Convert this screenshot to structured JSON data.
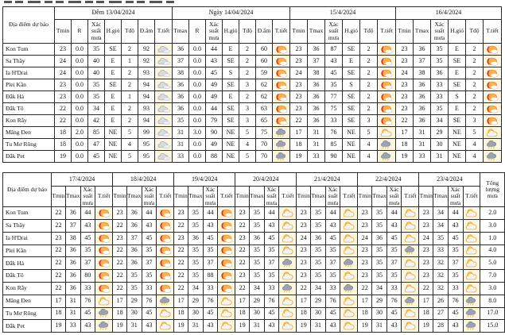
{
  "colors": {
    "icon_cell_bg": "#FBF7DE",
    "table_border": "#2B2B2B",
    "sun_orange": "#FFB347",
    "sun_red": "#D93025",
    "sun_yellow": "#FFD34D",
    "cloud_gray": "#D8DBDF",
    "rain_cloud_gray": "#9CA3AF",
    "rain_drop_yellow": "#E8B32A"
  },
  "icon_legend": {
    "cloud": "gray-cloud",
    "hotsun": "hot-sun-with-small-cloud",
    "partly": "sun-behind-cloud",
    "rain": "rain-shower-cloud"
  },
  "table1": {
    "location_header": "Địa điểm dự báo",
    "groups": [
      {
        "title": "Đêm 13/04/2024",
        "cols": [
          "Tmin",
          "R",
          "Xác suất mưa",
          "H.gió",
          "Tđộ",
          "Đ.ẩm",
          "T.tiết"
        ]
      },
      {
        "title": "Ngày 14/04/2024",
        "cols": [
          "Tmax",
          "R",
          "Xác suất mưa",
          "H.gió",
          "Tđộ",
          "Đ.ẩm",
          "T.tiết"
        ]
      },
      {
        "title": "15/4/2024",
        "cols": [
          "Tmin",
          "Tmax",
          "Xác suất mưa",
          "H.gió",
          "Tđộ",
          "T.tiết"
        ]
      },
      {
        "title": "16/4/2024",
        "cols": [
          "Tmin",
          "Tmax",
          "Xác suất mưa",
          "H.gió",
          "Tđộ",
          "T.tiết"
        ]
      }
    ],
    "rows": [
      {
        "name": "Kon Tum",
        "cells": [
          "23",
          "0.0",
          "35",
          "SE",
          "2",
          "92",
          "icon:cloud",
          "36",
          "0.0",
          "44",
          "E",
          "2",
          "60",
          "icon:hotsun",
          "23",
          "36",
          "87",
          "SE",
          "2",
          "icon:hotsun",
          "23",
          "36",
          "35",
          "E",
          "2",
          "icon:hotsun"
        ]
      },
      {
        "name": "Sa Thầy",
        "cells": [
          "24",
          "0.0",
          "40",
          "E",
          "1",
          "92",
          "icon:cloud",
          "37",
          "0.0",
          "43",
          "SE",
          "2",
          "60",
          "icon:hotsun",
          "23",
          "37",
          "43",
          "E",
          "2",
          "icon:hotsun",
          "23",
          "37",
          "35",
          "SE",
          "2",
          "icon:hotsun"
        ]
      },
      {
        "name": "Ia H'Drai",
        "cells": [
          "24",
          "0.0",
          "40",
          "E",
          "2",
          "93",
          "icon:cloud",
          "38",
          "0.0",
          "45",
          "S",
          "2",
          "59",
          "icon:hotsun",
          "24",
          "38",
          "45",
          "SE",
          "2",
          "icon:hotsun",
          "24",
          "38",
          "36",
          "E",
          "2",
          "icon:hotsun"
        ]
      },
      {
        "name": "Plei Kần",
        "cells": [
          "23",
          "0.0",
          "35",
          "SE",
          "2",
          "94",
          "icon:cloud",
          "36",
          "0.0",
          "49",
          "SE",
          "3",
          "62",
          "icon:hotsun",
          "23",
          "36",
          "35",
          "S",
          "2",
          "icon:hotsun",
          "23",
          "36",
          "33",
          "SE",
          "2",
          "icon:hotsun"
        ]
      },
      {
        "name": "Đắk Hà",
        "cells": [
          "23",
          "0.0",
          "35",
          "E",
          "1",
          "94",
          "icon:cloud",
          "36",
          "0.0",
          "49",
          "E",
          "2",
          "62",
          "icon:hotsun",
          "23",
          "36",
          "77",
          "SE",
          "2",
          "icon:hotsun",
          "23",
          "36",
          "33",
          "S",
          "2",
          "icon:hotsun"
        ]
      },
      {
        "name": "Đắk Tô",
        "cells": [
          "22",
          "0.0",
          "34",
          "E",
          "2",
          "93",
          "icon:cloud",
          "36",
          "0.0",
          "44",
          "SE",
          "3",
          "63",
          "icon:hotsun",
          "23",
          "36",
          "75",
          "SE",
          "2",
          "icon:hotsun",
          "23",
          "36",
          "35",
          "E",
          "2",
          "icon:hotsun"
        ]
      },
      {
        "name": "Kon Rẫy",
        "cells": [
          "22",
          "0.0",
          "42",
          "E",
          "2",
          "94",
          "icon:cloud",
          "35",
          "0.0",
          "79",
          "SE",
          "3",
          "65",
          "icon:hotsun",
          "22",
          "36",
          "33",
          "SE",
          "3",
          "icon:hotsun",
          "22",
          "36",
          "34",
          "SE",
          "3",
          "icon:hotsun"
        ]
      },
      {
        "name": "Măng Đen",
        "cells": [
          "18",
          "2.0",
          "85",
          "NE",
          "5",
          "99",
          "icon:cloud",
          "31",
          "3.0",
          "90",
          "NE",
          "5",
          "75",
          "icon:rain",
          "17",
          "31",
          "76",
          "NE",
          "5",
          "icon:partly",
          "17",
          "31",
          "29",
          "NE",
          "5",
          "icon:partly"
        ]
      },
      {
        "name": "Tu Mơ Rông",
        "cells": [
          "18",
          "0.0",
          "47",
          "NE",
          "4",
          "95",
          "icon:cloud",
          "31",
          "0.0",
          "49",
          "NE",
          "4",
          "70",
          "icon:rain",
          "18",
          "31",
          "85",
          "NE",
          "4",
          "icon:rain",
          "18",
          "31",
          "30",
          "NE",
          "4",
          "icon:rain"
        ]
      },
      {
        "name": "Đắk Pet",
        "cells": [
          "19",
          "0.0",
          "45",
          "NE",
          "5",
          "95",
          "icon:cloud",
          "33",
          "0.0",
          "88",
          "NE",
          "5",
          "70",
          "icon:rain",
          "19",
          "33",
          "90",
          "NE",
          "4",
          "icon:rain",
          "19",
          "33",
          "31",
          "NE",
          "4",
          "icon:rain"
        ]
      }
    ]
  },
  "table2": {
    "location_header": "Địa điểm dự báo",
    "total_header": "Tổng lượng mưa",
    "groups": [
      {
        "title": "17/4/2024",
        "cols": [
          "Tmin",
          "Tmax",
          "Xác suất mưa",
          "T.tiết"
        ]
      },
      {
        "title": "18/4/2024",
        "cols": [
          "Tmin",
          "Tmax",
          "Xác suất mưa",
          "T.tiết"
        ]
      },
      {
        "title": "19/4/2024",
        "cols": [
          "Tmin",
          "Tmax",
          "Xác suất mưa",
          "T.tiết"
        ]
      },
      {
        "title": "20/4/2024",
        "cols": [
          "Tmin",
          "Tmax",
          "Xác suất mưa",
          "T.tiết"
        ]
      },
      {
        "title": "21/4/2024",
        "cols": [
          "Tmin",
          "Tmax",
          "Xác suất mưa",
          "T.tiết"
        ]
      },
      {
        "title": "22/4/2024",
        "cols": [
          "Tmin",
          "Tmax",
          "Xác suất mưa",
          "T.tiết"
        ]
      },
      {
        "title": "23/4/2024",
        "cols": [
          "Tmin",
          "Tmax",
          "Xác suất mưa",
          "T.tiết"
        ]
      }
    ],
    "rows": [
      {
        "name": "Kon Tum",
        "cells": [
          "22",
          "36",
          "44",
          "icon:hotsun",
          "23",
          "36",
          "44",
          "icon:hotsun",
          "23",
          "35",
          "44",
          "icon:hotsun",
          "23",
          "35",
          "44",
          "icon:partly",
          "23",
          "35",
          "44",
          "icon:partly",
          "23",
          "35",
          "44",
          "icon:partly",
          "23",
          "34",
          "44",
          "icon:partly"
        ],
        "total": "2.0"
      },
      {
        "name": "Sa Thầy",
        "cells": [
          "22",
          "37",
          "43",
          "icon:hotsun",
          "22",
          "36",
          "43",
          "icon:hotsun",
          "22",
          "35",
          "43",
          "icon:hotsun",
          "22",
          "35",
          "43",
          "icon:partly",
          "23",
          "35",
          "43",
          "icon:partly",
          "23",
          "35",
          "43",
          "icon:partly",
          "23",
          "34",
          "43",
          "icon:partly"
        ],
        "total": "3.0"
      },
      {
        "name": "Ia H'Drai",
        "cells": [
          "23",
          "38",
          "45",
          "icon:hotsun",
          "23",
          "37",
          "45",
          "icon:hotsun",
          "23",
          "36",
          "45",
          "icon:hotsun",
          "23",
          "36",
          "45",
          "icon:partly",
          "24",
          "36",
          "45",
          "icon:partly",
          "24",
          "36",
          "45",
          "icon:partly",
          "24",
          "35",
          "45",
          "icon:partly"
        ],
        "total": "1.0"
      },
      {
        "name": "Plei Kần",
        "cells": [
          "22",
          "36",
          "35",
          "icon:hotsun",
          "22",
          "36",
          "35",
          "icon:hotsun",
          "22",
          "35",
          "35",
          "icon:hotsun",
          "22",
          "35",
          "35",
          "icon:partly",
          "23",
          "35",
          "35",
          "icon:partly",
          "23",
          "35",
          "35",
          "icon:rain",
          "23",
          "33",
          "35",
          "icon:partly"
        ],
        "total": "4.0"
      },
      {
        "name": "Đắk Hà",
        "cells": [
          "22",
          "36",
          "37",
          "icon:hotsun",
          "22",
          "36",
          "37",
          "icon:hotsun",
          "22",
          "35",
          "37",
          "icon:hotsun",
          "22",
          "35",
          "37",
          "icon:rain",
          "23",
          "35",
          "37",
          "icon:rain",
          "23",
          "35",
          "37",
          "icon:partly",
          "23",
          "32",
          "37",
          "icon:partly"
        ],
        "total": "5.0"
      },
      {
        "name": "Đắk Tô",
        "cells": [
          "22",
          "36",
          "80",
          "icon:hotsun",
          "22",
          "35",
          "35",
          "icon:hotsun",
          "22",
          "35",
          "88",
          "icon:hotsun",
          "23",
          "35",
          "35",
          "icon:partly",
          "23",
          "35",
          "35",
          "icon:partly",
          "23",
          "35",
          "35",
          "icon:partly",
          "23",
          "32",
          "35",
          "icon:partly"
        ],
        "total": "7.0"
      },
      {
        "name": "Kon Rẫy",
        "cells": [
          "22",
          "36",
          "33",
          "icon:hotsun",
          "22",
          "35",
          "33",
          "icon:hotsun",
          "22",
          "34",
          "33",
          "icon:hotsun",
          "22",
          "34",
          "33",
          "icon:rain",
          "22",
          "34",
          "33",
          "icon:rain",
          "22",
          "34",
          "33",
          "icon:partly",
          "22",
          "32",
          "33",
          "icon:partly"
        ],
        "total": "3.0"
      },
      {
        "name": "Măng Đen",
        "cells": [
          "17",
          "31",
          "76",
          "icon:partly",
          "17",
          "29",
          "76",
          "icon:rain",
          "17",
          "29",
          "76",
          "icon:partly",
          "17",
          "29",
          "76",
          "icon:partly",
          "17",
          "29",
          "76",
          "icon:partly",
          "17",
          "29",
          "76",
          "icon:rain",
          "17",
          "26",
          "76",
          "icon:rain"
        ],
        "total": "8.0"
      },
      {
        "name": "Tu Mơ Rông",
        "cells": [
          "18",
          "31",
          "45",
          "icon:rain",
          "18",
          "30",
          "45",
          "icon:partly",
          "18",
          "30",
          "45",
          "icon:partly",
          "18",
          "30",
          "45",
          "icon:partly",
          "18",
          "30",
          "45",
          "icon:partly",
          "18",
          "30",
          "45",
          "icon:partly",
          "18",
          "27",
          "45",
          "icon:rain"
        ],
        "total": "17.0"
      },
      {
        "name": "Đắk Pet",
        "cells": [
          "19",
          "33",
          "43",
          "icon:rain",
          "19",
          "31",
          "43",
          "icon:partly",
          "19",
          "31",
          "43",
          "icon:partly",
          "19",
          "31",
          "43",
          "icon:partly",
          "19",
          "31",
          "43",
          "icon:partly",
          "19",
          "31",
          "43",
          "icon:partly",
          "19",
          "28",
          "43",
          "icon:rain"
        ],
        "total": "15.0"
      }
    ]
  }
}
